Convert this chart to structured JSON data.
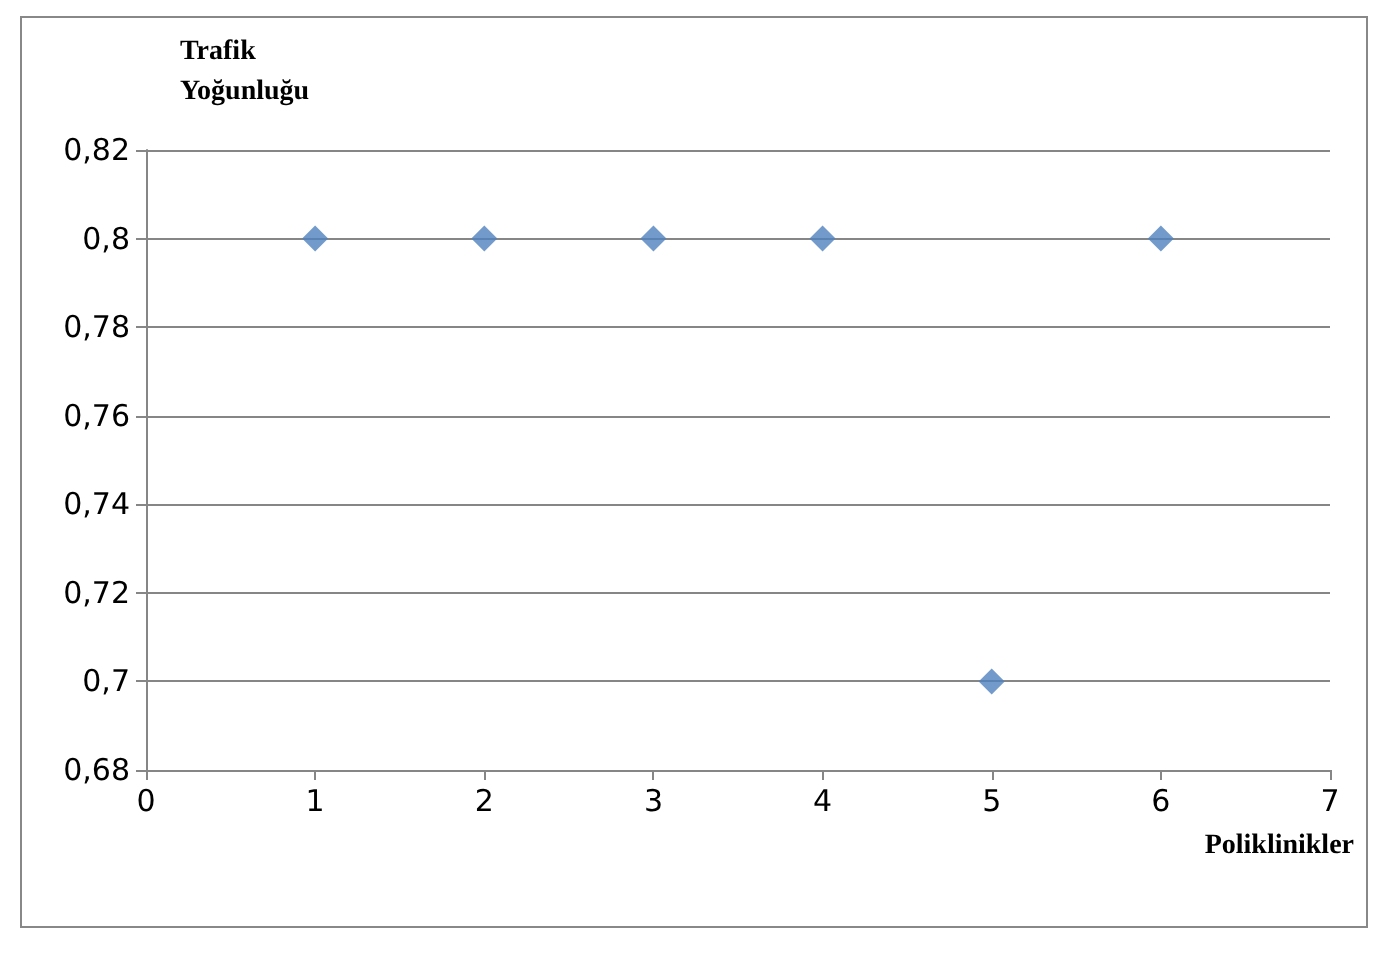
{
  "chart_data": {
    "type": "scatter",
    "ylabel": "Trafik Yoğunluğu",
    "xlabel": "Poliklinikler",
    "x": [
      1,
      2,
      3,
      4,
      5,
      6
    ],
    "series": [
      {
        "color": "#4f81bd",
        "values": [
          0.8,
          0.8,
          0.8,
          0.8,
          0.7,
          0.8
        ]
      }
    ],
    "xlim": [
      0,
      7
    ],
    "xticks": [
      0,
      1,
      2,
      3,
      4,
      5,
      6,
      7
    ],
    "ylim": [
      0.68,
      0.82
    ],
    "yticks": [
      {
        "value": 0.68,
        "label": "0,68"
      },
      {
        "value": 0.7,
        "label": "0,7"
      },
      {
        "value": 0.72,
        "label": "0,72"
      },
      {
        "value": 0.74,
        "label": "0,74"
      },
      {
        "value": 0.76,
        "label": "0,76"
      },
      {
        "value": 0.78,
        "label": "0,78"
      },
      {
        "value": 0.8,
        "label": "0,8"
      },
      {
        "value": 0.82,
        "label": "0,82"
      }
    ],
    "grid": "y",
    "marker": "diamond"
  }
}
